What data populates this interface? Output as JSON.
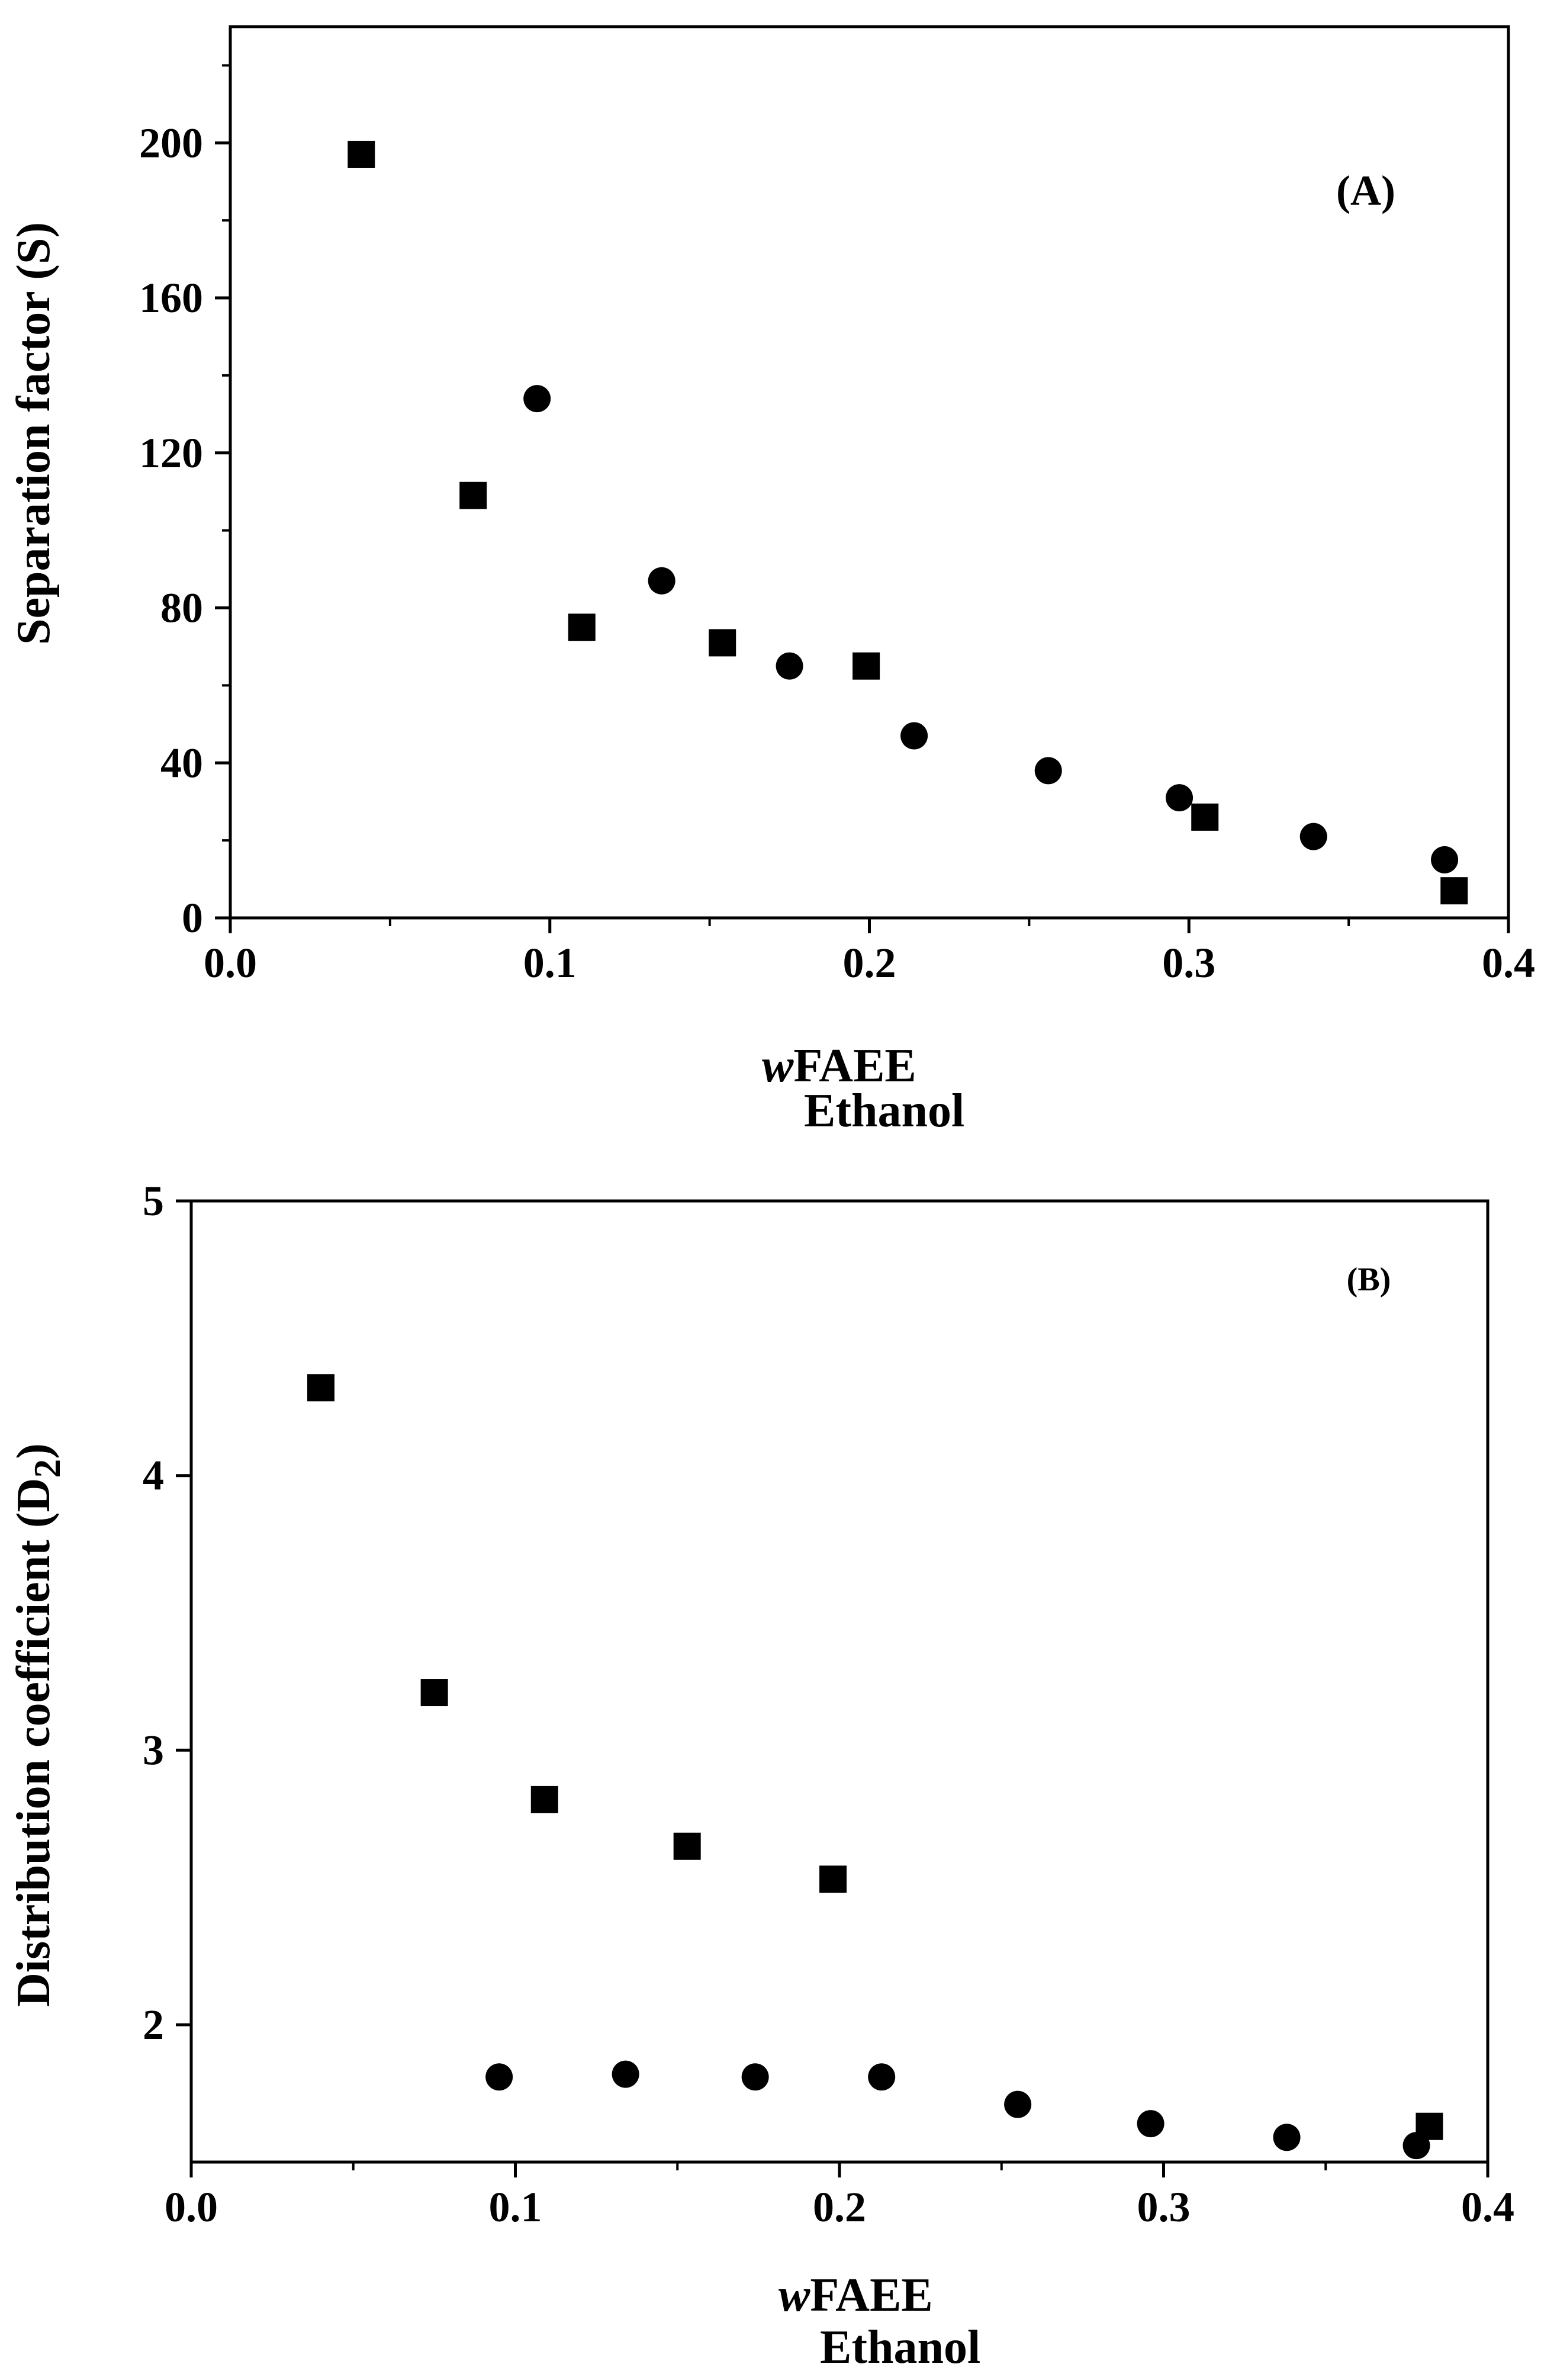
{
  "chart_data": [
    {
      "type": "scatter",
      "panel_label": "(A)",
      "ylabel": "Separation factor (S)",
      "xlabel_italic": "w",
      "xlabel_main": "FAEE",
      "xlabel_sub": "Ethanol",
      "xlim": [
        0.0,
        0.4
      ],
      "ylim": [
        0,
        230
      ],
      "xticks": [
        0.0,
        0.1,
        0.2,
        0.3,
        0.4
      ],
      "xtick_labels": [
        "0.0",
        "0.1",
        "0.2",
        "0.3",
        "0.4"
      ],
      "yticks": [
        0,
        40,
        80,
        120,
        160,
        200
      ],
      "ytick_labels": [
        "0",
        "40",
        "80",
        "120",
        "160",
        "200"
      ],
      "series": [
        {
          "name": "squares",
          "marker": "square",
          "color": "#000000",
          "x": [
            0.041,
            0.076,
            0.11,
            0.154,
            0.199,
            0.305,
            0.383
          ],
          "y": [
            197,
            109,
            75,
            71,
            65,
            26,
            7
          ]
        },
        {
          "name": "circles",
          "marker": "circle",
          "color": "#000000",
          "x": [
            0.096,
            0.135,
            0.175,
            0.214,
            0.256,
            0.297,
            0.339,
            0.38
          ],
          "y": [
            134,
            87,
            65,
            47,
            38,
            31,
            21,
            15
          ]
        }
      ]
    },
    {
      "type": "scatter",
      "panel_label": "(B)",
      "ylabel": "Distribution coefficient (D",
      "ylabel_sub": "2",
      "ylabel_close": ")",
      "xlabel_italic": "w",
      "xlabel_main": "FAEE",
      "xlabel_sub": "Ethanol",
      "xlim": [
        0.0,
        0.4
      ],
      "ylim": [
        1.5,
        5.0
      ],
      "xticks": [
        0.0,
        0.1,
        0.2,
        0.3,
        0.4
      ],
      "xtick_labels": [
        "0.0",
        "0.1",
        "0.2",
        "0.3",
        "0.4"
      ],
      "yticks": [
        2,
        3,
        4,
        5
      ],
      "ytick_labels": [
        "2",
        "3",
        "4",
        "5"
      ],
      "series": [
        {
          "name": "squares",
          "marker": "square",
          "color": "#000000",
          "x": [
            0.04,
            0.075,
            0.109,
            0.153,
            0.198,
            0.382
          ],
          "y": [
            4.32,
            3.21,
            2.82,
            2.65,
            2.53,
            1.63
          ]
        },
        {
          "name": "circles",
          "marker": "circle",
          "color": "#000000",
          "x": [
            0.095,
            0.134,
            0.174,
            0.213,
            0.255,
            0.296,
            0.338,
            0.378
          ],
          "y": [
            1.81,
            1.82,
            1.81,
            1.81,
            1.71,
            1.64,
            1.59,
            1.56
          ]
        }
      ]
    }
  ]
}
